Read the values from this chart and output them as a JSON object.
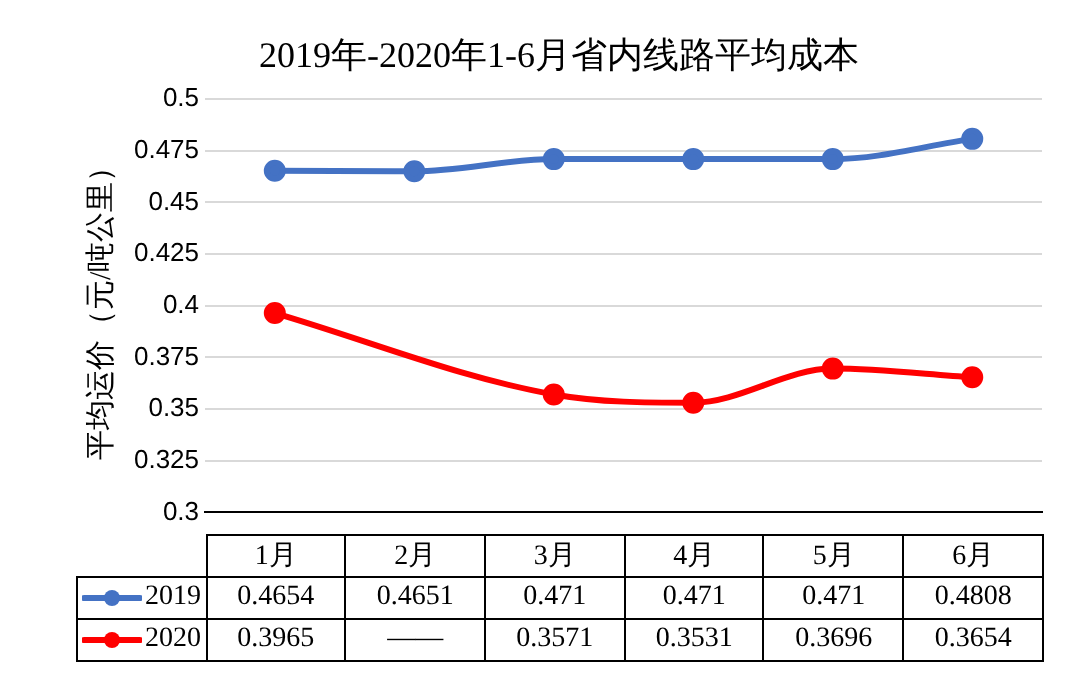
{
  "chart_data": {
    "type": "line",
    "title": "2019年-2020年1-6月省内线路平均成本",
    "ylabel": "平均运价（元/吨公里）",
    "categories": [
      "1月",
      "2月",
      "3月",
      "4月",
      "5月",
      "6月"
    ],
    "series": [
      {
        "name": "2019",
        "color": "#4472c4",
        "values": [
          0.4654,
          0.4651,
          0.471,
          0.471,
          0.471,
          0.4808
        ],
        "value_labels": [
          "0.4654",
          "0.4651",
          "0.471",
          "0.471",
          "0.471",
          "0.4808"
        ]
      },
      {
        "name": "2020",
        "color": "#ff0000",
        "values": [
          0.3965,
          null,
          0.3571,
          0.3531,
          0.3696,
          0.3654
        ],
        "value_labels": [
          "0.3965",
          "——",
          "0.3571",
          "0.3531",
          "0.3696",
          "0.3654"
        ]
      }
    ],
    "ylim": [
      0.3,
      0.5
    ],
    "yticks": [
      0.3,
      0.325,
      0.35,
      0.375,
      0.4,
      0.425,
      0.45,
      0.475,
      0.5
    ],
    "grid": "y",
    "legend": "bottom",
    "marker": "circle",
    "line_style": "solid"
  }
}
